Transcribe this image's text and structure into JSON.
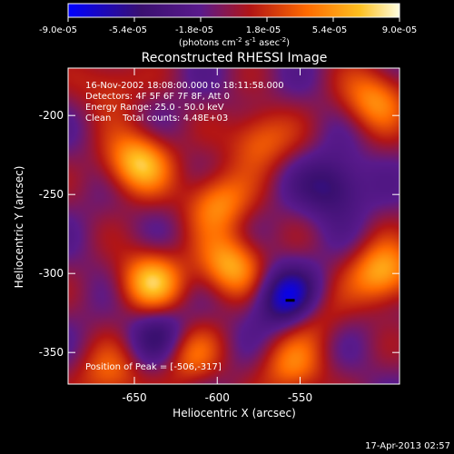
{
  "chart_data": {
    "type": "heatmap",
    "title": "Reconstructed RHESSI Image",
    "xlabel": "Heliocentric X (arcsec)",
    "ylabel": "Heliocentric Y (arcsec)",
    "xlim": [
      -690,
      -490
    ],
    "ylim": [
      -370,
      -170
    ],
    "x_ticks": [
      -650,
      -600,
      -550
    ],
    "x_tick_labels": [
      "-650",
      "-600",
      "-550"
    ],
    "y_ticks": [
      -350,
      -300,
      -250,
      -200
    ],
    "y_tick_labels": [
      "-350",
      "-300",
      "-250",
      "-200"
    ],
    "colorbar": {
      "range": [
        -9e-05,
        9e-05
      ],
      "tick_labels": [
        "-9.0e-05",
        "-5.4e-05",
        "-1.8e-05",
        "1.8e-05",
        "5.4e-05",
        "9.0e-05"
      ],
      "unit_label": "(photons cm",
      "unit_exp1": "-2",
      "unit_mid": " s",
      "unit_exp2": "-1",
      "unit_tail": " asec",
      "unit_exp3": "-2",
      "unit_close": ")",
      "colors": [
        "#0000ff",
        "#3a1070",
        "#5a1a8c",
        "#b21515",
        "#ff6a00",
        "#ffc020",
        "#ffffe0"
      ]
    },
    "annotations": {
      "time_range": "16-Nov-2002 18:08:00.000 to 18:11:58.000",
      "detectors": "Detectors: 4F 5F 6F 7F 8F, Att 0",
      "energy": "Energy Range: 25.0 - 50.0 keV",
      "clean": "Clean    Total counts: 4.48E+03",
      "peak": "Position of Peak = [-506,-317]"
    },
    "sources": [
      {
        "x": -648,
        "y": -230,
        "value": 8e-05
      },
      {
        "x": -640,
        "y": -305,
        "value": 7.5e-05
      },
      {
        "x": -600,
        "y": -255,
        "value": 6e-05
      },
      {
        "x": -592,
        "y": -295,
        "value": 7e-05
      },
      {
        "x": -620,
        "y": -350,
        "value": 6.5e-05
      },
      {
        "x": -575,
        "y": -215,
        "value": 5e-05
      },
      {
        "x": -500,
        "y": -300,
        "value": 7.5e-05
      },
      {
        "x": -505,
        "y": -190,
        "value": 6e-05
      },
      {
        "x": -555,
        "y": -360,
        "value": 5e-05
      },
      {
        "x": -665,
        "y": -365,
        "value": 4.5e-05
      },
      {
        "x": -665,
        "y": -180,
        "value": 3.5e-05
      },
      {
        "x": -545,
        "y": -325,
        "value": 5e-05
      }
    ],
    "minima": [
      {
        "x": -556,
        "y": -317,
        "value": -9e-05
      },
      {
        "x": -632,
        "y": -342,
        "value": -6e-05
      },
      {
        "x": -530,
        "y": -245,
        "value": -5e-05
      }
    ]
  },
  "footer": {
    "date": "17-Apr-2013 02:57"
  }
}
